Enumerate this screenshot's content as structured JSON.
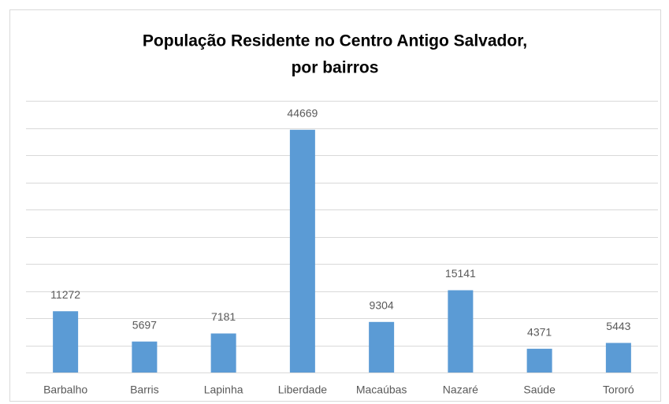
{
  "chart_data": {
    "type": "bar",
    "title": [
      "População Residente no Centro Antigo Salvador,",
      "por bairros"
    ],
    "categories": [
      "Barbalho",
      "Barris",
      "Lapinha",
      "Liberdade",
      "Macaúbas",
      "Nazaré",
      "Saúde",
      "Tororó"
    ],
    "values": [
      11272,
      5697,
      7181,
      44669,
      9304,
      15141,
      4371,
      5443
    ],
    "color": "#5b9bd5",
    "ylim": [
      0,
      50000
    ],
    "yticks": [
      0,
      5000,
      10000,
      15000,
      20000,
      25000,
      30000,
      35000,
      40000,
      45000,
      50000
    ],
    "ytick_labels": false,
    "grid": true,
    "data_labels": true
  }
}
